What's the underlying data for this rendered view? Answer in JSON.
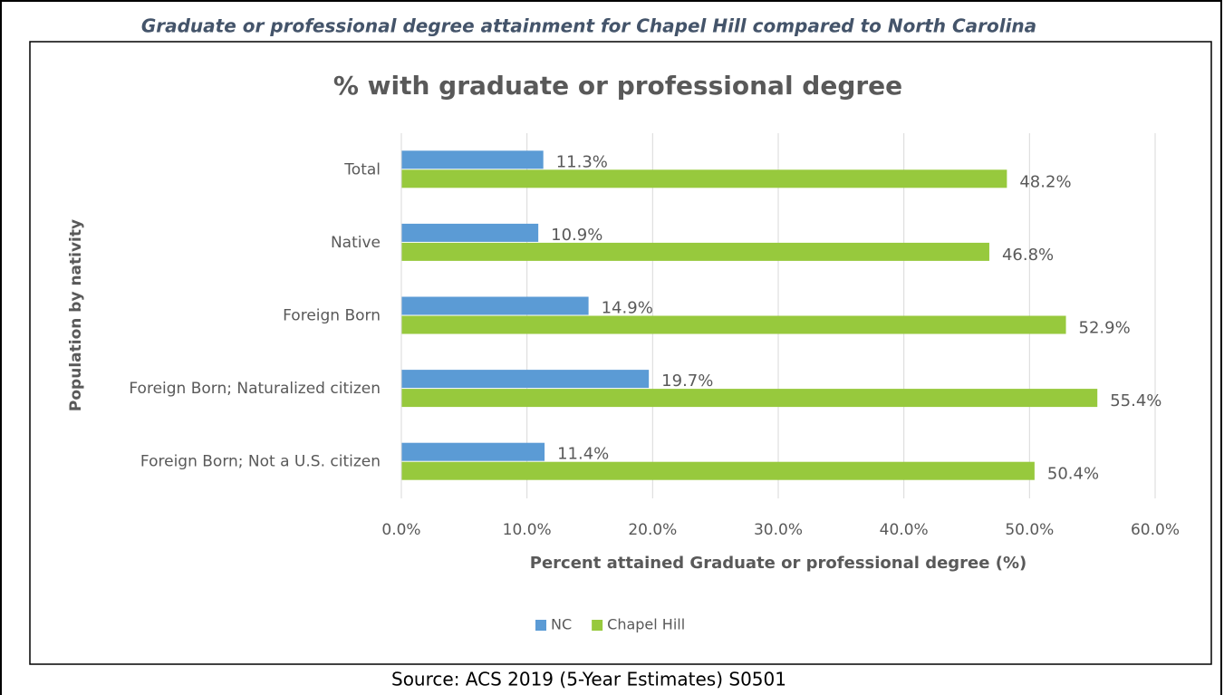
{
  "caption": "Graduate or professional degree attainment for Chapel Hill compared to North Carolina",
  "source": "Source: ACS 2019 (5-Year Estimates) S0501",
  "chart_data": {
    "type": "hbar",
    "title": "% with graduate or professional degree",
    "x_label": "Percent attained Graduate or professional degree (%)",
    "y_label": "Population by nativity",
    "categories": [
      "Total",
      "Native",
      "Foreign Born",
      "Foreign Born; Naturalized citizen",
      "Foreign Born; Not a U.S. citizen"
    ],
    "series": [
      {
        "name": "NC",
        "color": "#5b9bd5",
        "values": [
          11.3,
          10.9,
          14.9,
          19.7,
          11.4
        ],
        "value_labels": [
          "11.3%",
          "10.9%",
          "14.9%",
          "19.7%",
          "11.4%"
        ]
      },
      {
        "name": "Chapel Hill",
        "color": "#97c93d",
        "values": [
          48.2,
          46.8,
          52.9,
          55.4,
          50.4
        ],
        "value_labels": [
          "48.2%",
          "46.8%",
          "52.9%",
          "55.4%",
          "50.4%"
        ]
      }
    ],
    "xlim": [
      0,
      60
    ],
    "xticks": [
      {
        "value": 0,
        "label": "0.0%"
      },
      {
        "value": 10,
        "label": "10.0%"
      },
      {
        "value": 20,
        "label": "20.0%"
      },
      {
        "value": 30,
        "label": "30.0%"
      },
      {
        "value": 40,
        "label": "40.0%"
      },
      {
        "value": 50,
        "label": "50.0%"
      },
      {
        "value": 60,
        "label": "60.0%"
      }
    ],
    "grid": true,
    "legend": "bottom"
  }
}
